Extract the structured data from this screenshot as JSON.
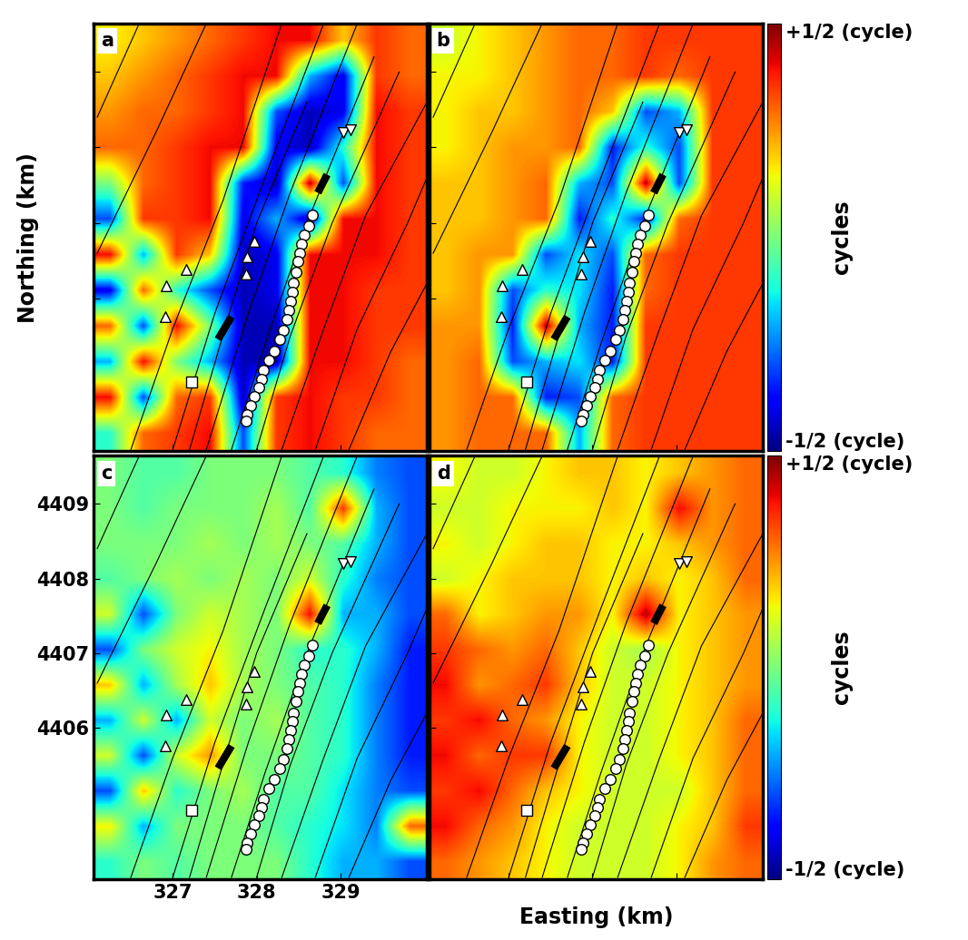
{
  "chart_data": [
    {
      "type": "heatmap",
      "title": "a",
      "ylabel": "Northing (km)",
      "xlim": [
        326.06,
        330.03
      ],
      "ylim": [
        4403.98,
        4409.64
      ],
      "xticks": [
        327,
        328,
        329
      ],
      "yticks": [
        4406,
        4407,
        4408,
        4409
      ],
      "tick_labels": false,
      "clim": [
        -0.5,
        0.5
      ],
      "cells": [
        [
          0.15,
          0.2,
          0.25,
          0.3,
          0.35,
          0.4,
          0.4,
          0.2,
          0.35,
          0.3
        ],
        [
          0.2,
          0.25,
          0.3,
          0.35,
          0.4,
          0.4,
          -0.2,
          -0.4,
          0.35,
          0.3
        ],
        [
          0.25,
          0.3,
          0.3,
          0.35,
          0.4,
          -0.3,
          -0.45,
          -0.4,
          0.4,
          0.35
        ],
        [
          0.3,
          0.3,
          0.35,
          0.4,
          0.4,
          -0.4,
          -0.45,
          -0.1,
          0.4,
          0.35
        ],
        [
          0.0,
          0.3,
          0.35,
          0.4,
          -0.35,
          -0.45,
          0.45,
          -0.3,
          0.4,
          0.35
        ],
        [
          -0.3,
          0.35,
          0.35,
          0.4,
          -0.4,
          -0.2,
          -0.45,
          0.4,
          0.4,
          0.35
        ],
        [
          0.4,
          -0.2,
          0.35,
          0.2,
          -0.45,
          -0.4,
          0.4,
          0.4,
          0.4,
          0.35
        ],
        [
          -0.4,
          0.3,
          -0.1,
          -0.3,
          -0.45,
          -0.4,
          0.4,
          0.4,
          0.35,
          0.35
        ],
        [
          0.3,
          -0.3,
          0.4,
          0.0,
          -0.45,
          -0.45,
          0.4,
          0.4,
          0.35,
          0.35
        ],
        [
          -0.2,
          0.4,
          0.0,
          -0.2,
          -0.45,
          -0.45,
          0.4,
          0.4,
          0.35,
          0.3
        ],
        [
          0.4,
          -0.3,
          0.3,
          0.35,
          -0.45,
          0.35,
          0.4,
          0.35,
          0.35,
          0.3
        ],
        [
          -0.1,
          0.3,
          0.35,
          0.4,
          -0.3,
          0.35,
          0.4,
          0.35,
          0.3,
          0.3
        ]
      ]
    },
    {
      "type": "heatmap",
      "title": "b",
      "xlim": [
        326.06,
        330.03
      ],
      "ylim": [
        4403.98,
        4409.64
      ],
      "xticks": [
        327,
        328,
        329
      ],
      "yticks": [
        4406,
        4407,
        4408,
        4409
      ],
      "tick_labels": false,
      "clim": [
        -0.5,
        0.5
      ],
      "colorbar": {
        "ticks": [
          {
            "value": -0.5,
            "label": "-1/2 (cycle)"
          },
          {
            "value": 0.5,
            "label": "+1/2 (cycle)"
          }
        ],
        "label": "cycles"
      },
      "cells": [
        [
          0.1,
          0.15,
          0.2,
          0.25,
          0.3,
          0.3,
          0.35,
          0.35,
          0.35,
          0.35
        ],
        [
          0.15,
          0.15,
          0.2,
          0.25,
          0.3,
          0.3,
          0.35,
          0.3,
          0.35,
          0.35
        ],
        [
          0.15,
          0.2,
          0.2,
          0.25,
          0.3,
          0.2,
          -0.3,
          -0.2,
          0.35,
          0.35
        ],
        [
          0.15,
          0.2,
          0.25,
          0.25,
          0.3,
          -0.35,
          -0.1,
          -0.3,
          0.35,
          0.35
        ],
        [
          0.2,
          0.2,
          0.25,
          0.3,
          -0.2,
          -0.3,
          0.45,
          -0.3,
          0.35,
          0.35
        ],
        [
          0.2,
          0.2,
          0.25,
          0.3,
          -0.35,
          -0.1,
          -0.35,
          0.3,
          0.35,
          0.35
        ],
        [
          0.2,
          0.25,
          0.25,
          -0.3,
          -0.15,
          -0.3,
          0.3,
          0.35,
          0.35,
          0.35
        ],
        [
          0.2,
          0.25,
          -0.3,
          -0.1,
          -0.15,
          -0.35,
          0.3,
          0.35,
          0.35,
          0.35
        ],
        [
          0.25,
          0.25,
          -0.35,
          0.45,
          -0.2,
          -0.35,
          0.35,
          0.35,
          0.35,
          0.35
        ],
        [
          0.25,
          0.3,
          -0.3,
          -0.2,
          -0.15,
          -0.35,
          0.35,
          0.35,
          0.35,
          0.35
        ],
        [
          0.25,
          0.3,
          0.3,
          -0.35,
          -0.3,
          0.3,
          0.35,
          0.35,
          0.35,
          0.35
        ],
        [
          0.25,
          0.3,
          0.3,
          0.3,
          -0.2,
          0.3,
          0.35,
          0.35,
          0.35,
          0.35
        ]
      ]
    },
    {
      "type": "heatmap",
      "title": "c",
      "xlim": [
        326.06,
        330.03
      ],
      "ylim": [
        4403.98,
        4409.64
      ],
      "xticks": [
        327,
        328,
        329
      ],
      "yticks": [
        4406,
        4407,
        4408,
        4409
      ],
      "tick_labels": true,
      "clim": [
        -0.5,
        0.5
      ],
      "cells": [
        [
          0.0,
          -0.05,
          -0.05,
          0.0,
          0.0,
          0.0,
          -0.05,
          -0.1,
          -0.25,
          -0.3
        ],
        [
          0.0,
          -0.05,
          0.0,
          0.0,
          0.0,
          0.05,
          -0.05,
          0.35,
          -0.2,
          -0.3
        ],
        [
          0.0,
          0.0,
          0.0,
          0.05,
          0.0,
          0.05,
          0.0,
          -0.05,
          -0.2,
          -0.3
        ],
        [
          -0.05,
          0.0,
          0.05,
          0.0,
          0.05,
          0.0,
          0.1,
          -0.1,
          -0.25,
          -0.3
        ],
        [
          0.1,
          -0.3,
          0.0,
          0.1,
          0.05,
          0.0,
          0.4,
          -0.2,
          -0.2,
          -0.3
        ],
        [
          -0.3,
          0.0,
          0.1,
          0.15,
          0.05,
          0.0,
          -0.1,
          -0.1,
          -0.2,
          -0.35
        ],
        [
          0.2,
          -0.2,
          0.05,
          0.2,
          0.05,
          0.0,
          -0.05,
          -0.1,
          -0.25,
          -0.35
        ],
        [
          -0.2,
          0.1,
          -0.2,
          0.1,
          0.0,
          0.05,
          -0.05,
          -0.1,
          -0.25,
          -0.35
        ],
        [
          0.1,
          -0.3,
          0.1,
          0.25,
          0.0,
          0.0,
          -0.05,
          -0.1,
          -0.25,
          -0.35
        ],
        [
          -0.3,
          0.2,
          -0.1,
          0.0,
          0.05,
          -0.05,
          -0.05,
          -0.15,
          -0.25,
          -0.3
        ],
        [
          0.15,
          -0.2,
          0.0,
          0.0,
          0.0,
          -0.05,
          -0.1,
          -0.15,
          -0.25,
          0.3
        ],
        [
          -0.1,
          0.0,
          -0.05,
          0.0,
          0.0,
          0.0,
          -0.1,
          -0.2,
          -0.2,
          -0.3
        ]
      ]
    },
    {
      "type": "heatmap",
      "title": "d",
      "xlabel": "Easting (km)",
      "xlim": [
        326.06,
        330.03
      ],
      "ylim": [
        4403.98,
        4409.64
      ],
      "xticks": [
        327,
        328,
        329
      ],
      "yticks": [
        4406,
        4407,
        4408,
        4409
      ],
      "tick_labels": false,
      "clim": [
        -0.5,
        0.5
      ],
      "colorbar": {
        "ticks": [
          {
            "value": -0.5,
            "label": "-1/2 (cycle)"
          },
          {
            "value": 0.5,
            "label": "+1/2 (cycle)"
          }
        ],
        "label": "cycles"
      },
      "cells": [
        [
          0.15,
          0.1,
          0.1,
          0.15,
          0.2,
          0.2,
          0.15,
          0.2,
          0.25,
          0.3
        ],
        [
          0.1,
          0.1,
          0.15,
          0.15,
          0.15,
          0.2,
          0.15,
          0.4,
          0.25,
          0.3
        ],
        [
          0.15,
          0.1,
          0.15,
          0.2,
          0.2,
          0.15,
          0.15,
          0.2,
          0.25,
          0.3
        ],
        [
          0.1,
          0.15,
          0.2,
          0.2,
          0.2,
          0.15,
          0.2,
          0.15,
          0.2,
          0.3
        ],
        [
          0.3,
          0.15,
          0.2,
          0.25,
          0.25,
          0.15,
          0.45,
          0.15,
          0.2,
          0.25
        ],
        [
          0.35,
          0.3,
          0.25,
          0.3,
          0.2,
          0.1,
          0.05,
          0.15,
          0.2,
          0.25
        ],
        [
          0.4,
          0.25,
          0.3,
          0.35,
          0.2,
          0.1,
          0.1,
          0.15,
          0.2,
          0.25
        ],
        [
          0.35,
          0.4,
          0.3,
          0.25,
          0.15,
          0.1,
          0.1,
          0.15,
          0.2,
          0.3
        ],
        [
          0.4,
          0.3,
          0.35,
          0.35,
          0.15,
          0.1,
          0.1,
          0.15,
          0.2,
          0.3
        ],
        [
          0.35,
          0.4,
          0.3,
          0.2,
          0.15,
          0.1,
          0.1,
          0.1,
          0.2,
          0.3
        ],
        [
          0.4,
          0.3,
          0.25,
          0.15,
          0.1,
          0.1,
          0.1,
          0.15,
          0.2,
          0.35
        ],
        [
          0.3,
          0.25,
          0.2,
          0.15,
          0.1,
          0.1,
          0.1,
          0.15,
          0.25,
          0.3
        ]
      ]
    }
  ],
  "overlay": {
    "faults": [
      [
        [
          326.1,
          4406.6
        ],
        [
          326.8,
          4408.2
        ],
        [
          327.4,
          4409.64
        ]
      ],
      [
        [
          326.5,
          4404.0
        ],
        [
          327.0,
          4405.6
        ],
        [
          327.6,
          4407.3
        ],
        [
          328.3,
          4409.64
        ]
      ],
      [
        [
          327.0,
          4404.0
        ],
        [
          327.5,
          4405.8
        ],
        [
          328.1,
          4407.6
        ],
        [
          328.8,
          4409.64
        ]
      ],
      [
        [
          327.4,
          4404.0
        ],
        [
          327.9,
          4405.8
        ],
        [
          328.4,
          4407.4
        ],
        [
          329.2,
          4409.64
        ]
      ],
      [
        [
          327.7,
          4404.0
        ],
        [
          328.1,
          4405.4
        ],
        [
          328.6,
          4407.0
        ],
        [
          329.4,
          4409.2
        ]
      ],
      [
        [
          328.0,
          4404.0
        ],
        [
          328.4,
          4405.5
        ],
        [
          328.9,
          4407.0
        ],
        [
          329.7,
          4409.0
        ]
      ],
      [
        [
          328.3,
          4404.0
        ],
        [
          328.8,
          4405.6
        ],
        [
          329.3,
          4407.1
        ],
        [
          330.03,
          4408.6
        ]
      ],
      [
        [
          328.7,
          4404.0
        ],
        [
          329.2,
          4405.6
        ],
        [
          329.8,
          4407.0
        ],
        [
          330.03,
          4407.6
        ]
      ],
      [
        [
          329.1,
          4404.0
        ],
        [
          329.6,
          4405.3
        ],
        [
          330.03,
          4406.2
        ]
      ],
      [
        [
          326.1,
          4408.4
        ],
        [
          326.6,
          4409.64
        ]
      ],
      [
        [
          327.2,
          4404.0
        ],
        [
          327.7,
          4405.9
        ],
        [
          328.0,
          4407.0
        ],
        [
          328.6,
          4408.6
        ]
      ]
    ],
    "wells": [
      {
        "color": "#000000",
        "x": [
          327.54,
          327.7
        ],
        "y": [
          4405.46,
          4405.76
        ]
      },
      {
        "color": "#000000",
        "x": [
          328.73,
          328.84
        ],
        "y": [
          4407.4,
          4407.64
        ]
      }
    ],
    "points": [
      {
        "marker": "circle",
        "color": "#ffffff",
        "x": [
          328.67,
          328.62,
          328.57,
          328.54,
          328.51,
          328.49,
          328.47,
          328.44,
          328.43,
          328.41,
          328.38,
          328.36,
          328.32,
          328.28,
          328.21,
          328.15,
          328.08,
          328.06,
          328.03,
          327.97,
          327.93,
          327.89,
          327.87
        ],
        "y": [
          4407.11,
          4406.96,
          4406.84,
          4406.72,
          4406.6,
          4406.49,
          4406.35,
          4406.2,
          4406.09,
          4405.97,
          4405.85,
          4405.73,
          4405.58,
          4405.46,
          4405.31,
          4405.19,
          4405.05,
          4404.93,
          4404.82,
          4404.7,
          4404.58,
          4404.46,
          4404.38
        ]
      },
      {
        "marker": "triangle_up",
        "color": "#ffffff",
        "x": [
          326.91,
          326.92,
          327.16,
          327.87,
          327.89,
          327.97
        ],
        "y": [
          4405.76,
          4406.17,
          4406.38,
          4406.32,
          4406.55,
          4406.76
        ]
      },
      {
        "marker": "triangle_down",
        "color": "#ffffff",
        "x": [
          329.03,
          329.12
        ],
        "y": [
          4408.2,
          4408.23
        ]
      },
      {
        "marker": "square",
        "color": "#ffffff",
        "x": [
          327.22
        ],
        "y": [
          4404.9
        ]
      }
    ]
  }
}
